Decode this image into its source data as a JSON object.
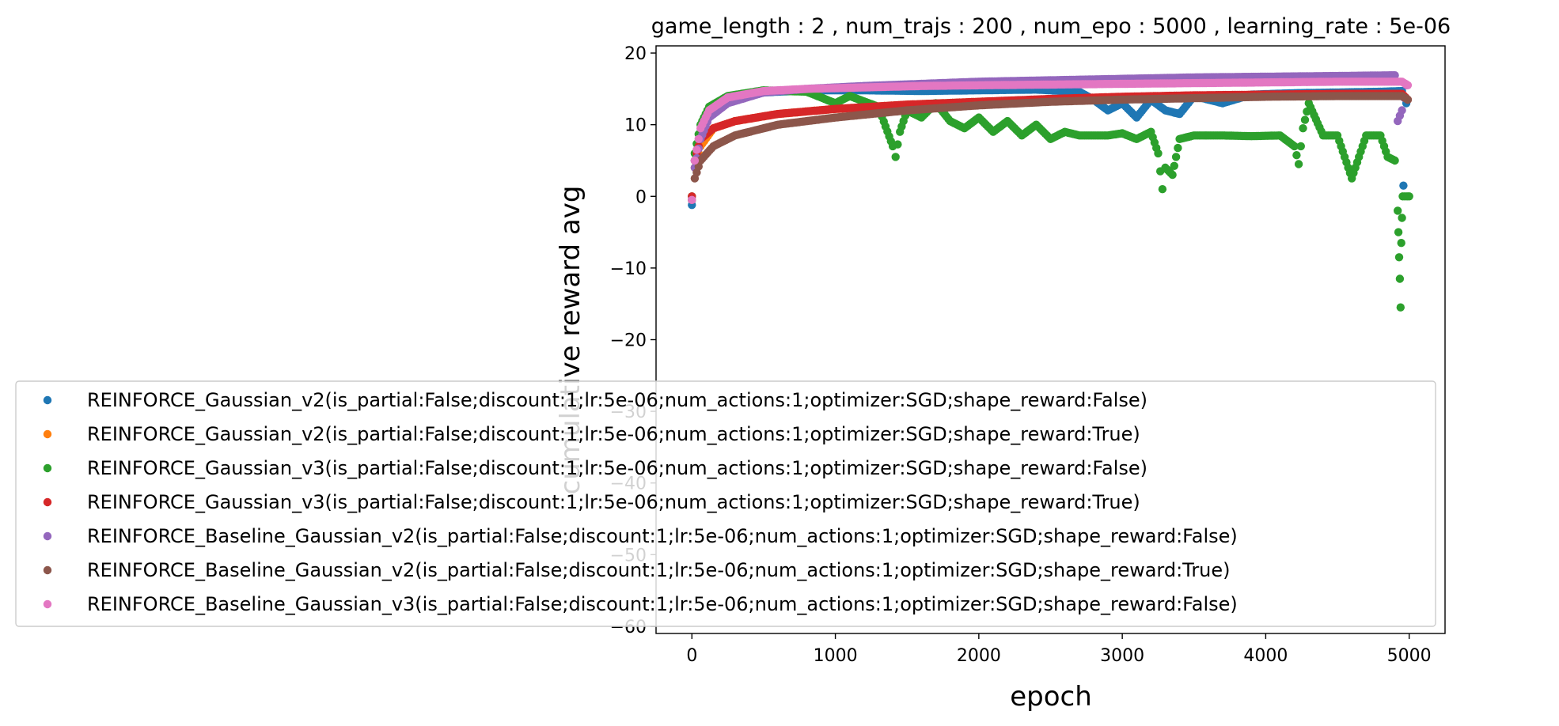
{
  "chart_data": {
    "type": "scatter",
    "title": "game_length : 2 , num_trajs : 200 , num_epo : 5000 , learning_rate : 5e-06",
    "xlabel": "epoch",
    "ylabel": "cumulative reward avg",
    "xlim": [
      -250,
      5250
    ],
    "ylim": [
      -61,
      21
    ],
    "xticks": [
      0,
      1000,
      2000,
      3000,
      4000,
      5000
    ],
    "yticks": [
      -60,
      -50,
      -40,
      -30,
      -20,
      -10,
      0,
      10,
      20
    ],
    "grid": false,
    "legend_position": "lower-left, overlapping axes",
    "series": [
      {
        "name": "REINFORCE_Gaussian_v2(is_partial:False;discount:1;lr:5e-06;num_actions:1;optimizer:SGD;shape_reward:False)",
        "color": "#1f77b4",
        "points": [
          [
            0,
            -1.2
          ],
          [
            20,
            5
          ],
          [
            60,
            9
          ],
          [
            120,
            11.5
          ],
          [
            250,
            13.5
          ],
          [
            500,
            14.5
          ],
          [
            800,
            14.8
          ],
          [
            1200,
            14.8
          ],
          [
            1600,
            14.7
          ],
          [
            2000,
            14.8
          ],
          [
            2400,
            14.9
          ],
          [
            2700,
            14.6
          ],
          [
            2800,
            13.5
          ],
          [
            2900,
            12
          ],
          [
            3000,
            13
          ],
          [
            3100,
            11
          ],
          [
            3200,
            13.5
          ],
          [
            3300,
            12
          ],
          [
            3400,
            11.5
          ],
          [
            3500,
            14
          ],
          [
            3700,
            13
          ],
          [
            3900,
            14.2
          ],
          [
            4200,
            14.4
          ],
          [
            4500,
            14.5
          ],
          [
            4800,
            14.6
          ],
          [
            4950,
            14.7
          ],
          [
            4960,
            1.5
          ],
          [
            4980,
            13
          ]
        ]
      },
      {
        "name": "REINFORCE_Gaussian_v2(is_partial:False;discount:1;lr:5e-06;num_actions:1;optimizer:SGD;shape_reward:True)",
        "color": "#ff7f0e",
        "points": [
          [
            0,
            -0.5
          ],
          [
            20,
            4
          ],
          [
            60,
            7
          ],
          [
            150,
            9.5
          ],
          [
            300,
            10.5
          ],
          [
            600,
            11.5
          ],
          [
            1000,
            12.2
          ],
          [
            1500,
            12.8
          ],
          [
            2000,
            13.2
          ],
          [
            2500,
            13.5
          ],
          [
            3000,
            13.8
          ],
          [
            3500,
            14
          ],
          [
            4000,
            14.1
          ],
          [
            4500,
            14.2
          ],
          [
            4950,
            14.2
          ]
        ]
      },
      {
        "name": "REINFORCE_Gaussian_v3(is_partial:False;discount:1;lr:5e-06;num_actions:1;optimizer:SGD;shape_reward:False)",
        "color": "#2ca02c",
        "points": [
          [
            0,
            0
          ],
          [
            20,
            6
          ],
          [
            60,
            10
          ],
          [
            120,
            12.5
          ],
          [
            250,
            14
          ],
          [
            500,
            14.8
          ],
          [
            800,
            14.6
          ],
          [
            1000,
            13
          ],
          [
            1100,
            14
          ],
          [
            1300,
            12.5
          ],
          [
            1400,
            7
          ],
          [
            1420,
            5.5
          ],
          [
            1450,
            9
          ],
          [
            1500,
            12
          ],
          [
            1600,
            11
          ],
          [
            1700,
            13
          ],
          [
            1800,
            10.5
          ],
          [
            1900,
            9.5
          ],
          [
            2000,
            11
          ],
          [
            2100,
            9
          ],
          [
            2200,
            10.5
          ],
          [
            2300,
            8.5
          ],
          [
            2400,
            10
          ],
          [
            2500,
            8
          ],
          [
            2600,
            9
          ],
          [
            2700,
            8.5
          ],
          [
            2800,
            8.5
          ],
          [
            2900,
            8.5
          ],
          [
            3000,
            8.8
          ],
          [
            3100,
            8
          ],
          [
            3200,
            9
          ],
          [
            3250,
            6
          ],
          [
            3280,
            1
          ],
          [
            3300,
            4
          ],
          [
            3350,
            3
          ],
          [
            3400,
            8
          ],
          [
            3500,
            8.5
          ],
          [
            3700,
            8.5
          ],
          [
            3900,
            8.4
          ],
          [
            4100,
            8.5
          ],
          [
            4200,
            7
          ],
          [
            4230,
            4.5
          ],
          [
            4260,
            9.5
          ],
          [
            4300,
            13
          ],
          [
            4400,
            8.5
          ],
          [
            4500,
            8.5
          ],
          [
            4600,
            2.5
          ],
          [
            4700,
            8.5
          ],
          [
            4800,
            8.5
          ],
          [
            4850,
            5.5
          ],
          [
            4900,
            5
          ],
          [
            4920,
            -2
          ],
          [
            4925,
            -5
          ],
          [
            4930,
            -8.5
          ],
          [
            4935,
            -11.5
          ],
          [
            4940,
            -15.5
          ],
          [
            4945,
            -6.5
          ],
          [
            4950,
            -3
          ],
          [
            4955,
            0
          ],
          [
            4970,
            0
          ],
          [
            4985,
            0
          ],
          [
            5000,
            0
          ]
        ]
      },
      {
        "name": "REINFORCE_Gaussian_v3(is_partial:False;discount:1;lr:5e-06;num_actions:1;optimizer:SGD;shape_reward:True)",
        "color": "#d62728",
        "points": [
          [
            0,
            0
          ],
          [
            20,
            5
          ],
          [
            60,
            8
          ],
          [
            150,
            9.5
          ],
          [
            300,
            10.5
          ],
          [
            600,
            11.5
          ],
          [
            1000,
            12.2
          ],
          [
            1500,
            12.8
          ],
          [
            2000,
            13.2
          ],
          [
            2500,
            13.6
          ],
          [
            3000,
            13.9
          ],
          [
            3500,
            14.1
          ],
          [
            4000,
            14.2
          ],
          [
            4500,
            14.3
          ],
          [
            4950,
            14.3
          ],
          [
            4990,
            13.5
          ]
        ]
      },
      {
        "name": "REINFORCE_Baseline_Gaussian_v2(is_partial:False;discount:1;lr:5e-06;num_actions:1;optimizer:SGD;shape_reward:False)",
        "color": "#9467bd",
        "points": [
          [
            0,
            -0.5
          ],
          [
            20,
            4
          ],
          [
            60,
            8
          ],
          [
            120,
            11
          ],
          [
            250,
            13
          ],
          [
            500,
            14.5
          ],
          [
            800,
            15
          ],
          [
            1200,
            15.4
          ],
          [
            1600,
            15.7
          ],
          [
            2000,
            16
          ],
          [
            2500,
            16.2
          ],
          [
            3000,
            16.4
          ],
          [
            3500,
            16.6
          ],
          [
            4000,
            16.7
          ],
          [
            4500,
            16.8
          ],
          [
            4900,
            16.9
          ],
          [
            4920,
            10.5
          ],
          [
            4950,
            12
          ],
          [
            4980,
            15.5
          ]
        ]
      },
      {
        "name": "REINFORCE_Baseline_Gaussian_v2(is_partial:False;discount:1;lr:5e-06;num_actions:1;optimizer:SGD;shape_reward:True)",
        "color": "#8c564b",
        "points": [
          [
            0,
            -0.5
          ],
          [
            20,
            2.5
          ],
          [
            60,
            5
          ],
          [
            150,
            7
          ],
          [
            300,
            8.5
          ],
          [
            600,
            10
          ],
          [
            1000,
            11
          ],
          [
            1500,
            12
          ],
          [
            2000,
            12.7
          ],
          [
            2500,
            13.2
          ],
          [
            3000,
            13.5
          ],
          [
            3500,
            13.7
          ],
          [
            4000,
            13.9
          ],
          [
            4500,
            14
          ],
          [
            4950,
            14
          ],
          [
            4990,
            13.5
          ]
        ]
      },
      {
        "name": "REINFORCE_Baseline_Gaussian_v3(is_partial:False;discount:1;lr:5e-06;num_actions:1;optimizer:SGD;shape_reward:False)",
        "color": "#e377c2",
        "points": [
          [
            0,
            -0.5
          ],
          [
            20,
            5
          ],
          [
            60,
            9.5
          ],
          [
            120,
            12
          ],
          [
            250,
            13.8
          ],
          [
            500,
            14.7
          ],
          [
            800,
            15
          ],
          [
            1200,
            15.2
          ],
          [
            1600,
            15.4
          ],
          [
            2000,
            15.5
          ],
          [
            2500,
            15.6
          ],
          [
            3000,
            15.7
          ],
          [
            3500,
            15.8
          ],
          [
            4000,
            15.9
          ],
          [
            4500,
            16
          ],
          [
            4950,
            16
          ],
          [
            4990,
            15.5
          ]
        ]
      }
    ]
  }
}
